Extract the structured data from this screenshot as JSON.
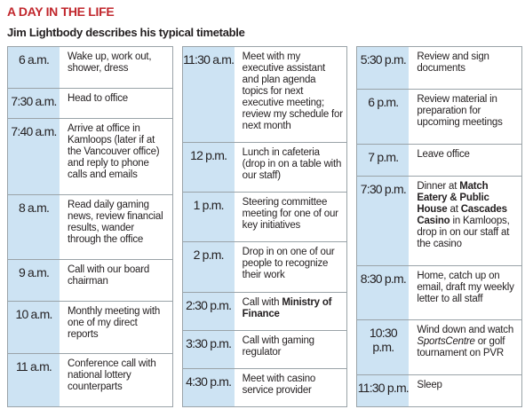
{
  "header": {
    "title": "A DAY IN THE LIFE",
    "subtitle": "Jim Lightbody describes his typical timetable"
  },
  "columns": [
    {
      "rows": [
        {
          "time": "6 a.m.",
          "text": [
            "Wake up, work out, shower, dress"
          ]
        },
        {
          "time": "7:30 a.m.",
          "text": [
            "Head to office"
          ]
        },
        {
          "time": "7:40 a.m.",
          "text": [
            "Arrive at office in Kamloops (later if at the Vancouver office) and reply to phone calls and emails"
          ]
        },
        {
          "time": "8 a.m.",
          "text": [
            "Read daily gaming news, review financial results, wander through the office"
          ]
        },
        {
          "time": "9 a.m.",
          "text": [
            "Call with our board chairman"
          ]
        },
        {
          "time": "10 a.m.",
          "text": [
            "Monthly meeting with one of my direct reports"
          ]
        },
        {
          "time": "11 a.m.",
          "text": [
            "Conference call with national lottery counterparts"
          ]
        }
      ]
    },
    {
      "rows": [
        {
          "time": "11:30 a.m.",
          "text": [
            "Meet with my executive assistant and plan agenda topics for next executive meeting; review my schedule for next month"
          ]
        },
        {
          "time": "12 p.m.",
          "text": [
            "Lunch in cafeteria (drop in on a table with our staff)"
          ]
        },
        {
          "time": "1 p.m.",
          "text": [
            "Steering committee meeting for one of our key initiatives"
          ]
        },
        {
          "time": "2 p.m.",
          "text": [
            "Drop in on one of our people to recognize their work"
          ]
        },
        {
          "time": "2:30 p.m.",
          "text": [
            "Call with ",
            {
              "text": "Ministry of Finance",
              "style": "bold"
            }
          ]
        },
        {
          "time": "3:30 p.m.",
          "text": [
            "Call with gaming regulator"
          ]
        },
        {
          "time": "4:30 p.m.",
          "text": [
            "Meet with casino service provider"
          ]
        }
      ]
    },
    {
      "rows": [
        {
          "time": "5:30 p.m.",
          "text": [
            "Review and sign documents"
          ]
        },
        {
          "time": "6 p.m.",
          "text": [
            "Review material in preparation for upcoming meetings"
          ]
        },
        {
          "time": "7 p.m.",
          "text": [
            "Leave office"
          ]
        },
        {
          "time": "7:30 p.m.",
          "text": [
            "Dinner at ",
            {
              "text": "Match Eatery & Public House",
              "style": "bold"
            },
            " at ",
            {
              "text": "Cascades Casino",
              "style": "bold"
            },
            " in Kamloops, drop in on our staff at the casino"
          ]
        },
        {
          "time": "8:30 p.m.",
          "text": [
            "Home, catch up on email, draft my weekly letter to all staff"
          ]
        },
        {
          "time": "10:30 p.m.",
          "text": [
            "Wind down and watch ",
            {
              "text": "SportsCentre",
              "style": "italic"
            },
            " or golf tournament on PVR"
          ]
        },
        {
          "time": "11:30 p.m.",
          "text": [
            "Sleep"
          ]
        }
      ]
    }
  ]
}
